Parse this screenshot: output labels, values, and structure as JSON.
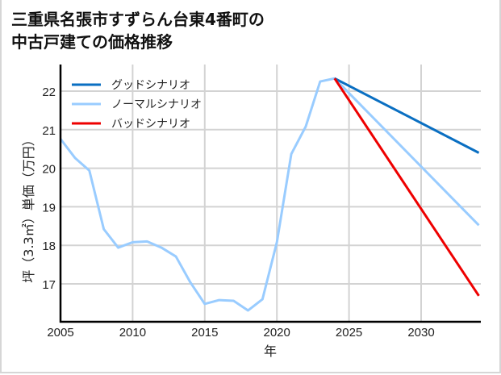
{
  "title_lines": [
    "三重県名張市すずらん台東4番町の",
    "中古戸建ての価格推移"
  ],
  "chart_data": {
    "type": "line",
    "title": "三重県名張市すずらん台東4番町の中古戸建ての価格推移",
    "xlabel": "年",
    "ylabel": "坪（3.3㎡）単価（万円）",
    "xlim": [
      2005,
      2034
    ],
    "ylim": [
      16.05,
      22.5
    ],
    "xticks": [
      2005,
      2010,
      2015,
      2020,
      2025,
      2030
    ],
    "yticks": [
      17,
      18,
      19,
      20,
      21,
      22
    ],
    "grid": true,
    "legend_position": "upper left",
    "series": [
      {
        "name": "グッドシナリオ",
        "color": "#0a6fc2",
        "x": [
          2024,
          2034
        ],
        "values": [
          22.33,
          20.4
        ]
      },
      {
        "name": "ノーマルシナリオ",
        "color": "#99ccff",
        "x": [
          2005,
          2006,
          2007,
          2008,
          2009,
          2010,
          2011,
          2012,
          2013,
          2014,
          2015,
          2016,
          2017,
          2018,
          2019,
          2020,
          2021,
          2022,
          2023,
          2024,
          2034
        ],
        "values": [
          20.76,
          20.27,
          19.94,
          18.42,
          17.94,
          18.08,
          18.1,
          17.94,
          17.71,
          17.04,
          16.48,
          16.58,
          16.56,
          16.31,
          16.6,
          18.08,
          20.37,
          21.08,
          22.25,
          22.33,
          18.52
        ]
      },
      {
        "name": "バッドシナリオ",
        "color": "#ee0000",
        "x": [
          2024,
          2034
        ],
        "values": [
          22.33,
          16.69
        ]
      }
    ]
  }
}
